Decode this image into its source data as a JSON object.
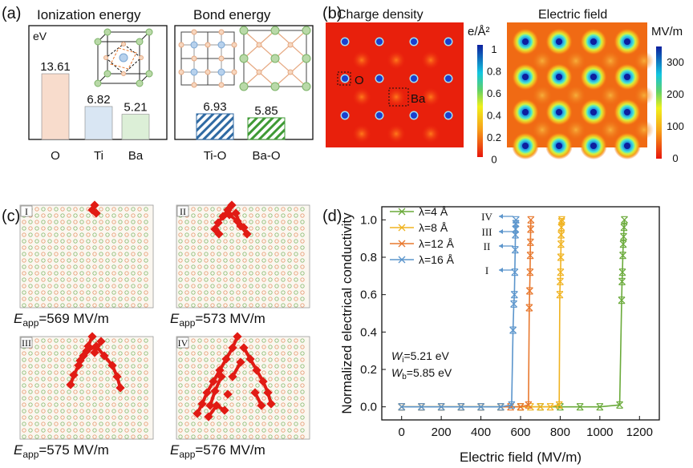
{
  "panel_a": {
    "label": "(a)",
    "ionization": {
      "title": "Ionization energy",
      "unit": "eV",
      "bars": [
        {
          "label": "O",
          "value": 13.61,
          "value_text": "13.61",
          "color": "#f8dccc"
        },
        {
          "label": "Ti",
          "value": 6.82,
          "value_text": "6.82",
          "color": "#d9e6f3"
        },
        {
          "label": "Ba",
          "value": 5.21,
          "value_text": "5.21",
          "color": "#dcefd7"
        }
      ]
    },
    "bond": {
      "title": "Bond energy",
      "bars": [
        {
          "label": "Ti-O",
          "value": 6.93,
          "value_text": "6.93",
          "color": "#2f6aa3"
        },
        {
          "label": "Ba-O",
          "value": 5.85,
          "value_text": "5.85",
          "color": "#3f9a35"
        }
      ]
    }
  },
  "panel_b": {
    "label": "(b)",
    "charge": {
      "title": "Charge density",
      "unit": "e/Å²",
      "ticks": [
        "1",
        "0.8",
        "0.6",
        "0.4",
        "0.2",
        "0"
      ],
      "site_labels": [
        "O",
        "Ba"
      ]
    },
    "field": {
      "title": "Electric field",
      "unit": "MV/m",
      "ticks": [
        "300",
        "200",
        "100",
        "0"
      ]
    }
  },
  "panel_c": {
    "label": "(c)",
    "panels": [
      {
        "roman": "I",
        "e_app": "569 MV/m"
      },
      {
        "roman": "II",
        "e_app": "573 MV/m"
      },
      {
        "roman": "III",
        "e_app": "575 MV/m"
      },
      {
        "roman": "IV",
        "e_app": "576 MV/m"
      }
    ],
    "e_symbol": "E",
    "e_sub": "app"
  },
  "panel_d": {
    "label": "(d)",
    "chart_data": {
      "type": "line",
      "xlabel": "Electric field (MV/m)",
      "ylabel": "Normalized electrical conductivity",
      "xlim": [
        -100,
        1300
      ],
      "ylim": [
        -0.07,
        1.07
      ],
      "xticks": [
        0,
        200,
        400,
        600,
        800,
        1000,
        1200
      ],
      "yticks": [
        0.0,
        0.2,
        0.4,
        0.6,
        0.8,
        1.0
      ],
      "legend_position": "top-left",
      "series": [
        {
          "name": "λ=4 Å",
          "color": "#6aaa3a",
          "x": [
            0,
            100,
            200,
            300,
            400,
            500,
            600,
            700,
            800,
            900,
            1000,
            1100,
            1110,
            1112,
            1114,
            1116,
            1118,
            1120,
            1122,
            1124
          ],
          "y": [
            0,
            0,
            0,
            0,
            0,
            0,
            0,
            0,
            0,
            0,
            0,
            0.01,
            0.57,
            0.67,
            0.72,
            0.81,
            0.87,
            0.91,
            0.96,
            1.0
          ]
        },
        {
          "name": "λ=8 Å",
          "color": "#f0b321",
          "x": [
            0,
            100,
            200,
            300,
            400,
            500,
            600,
            650,
            700,
            750,
            795,
            798,
            800,
            802,
            803,
            804,
            805,
            806,
            807,
            808
          ],
          "y": [
            0,
            0,
            0,
            0,
            0,
            0,
            0,
            0,
            0,
            0,
            0.01,
            0.6,
            0.67,
            0.72,
            0.8,
            0.87,
            0.92,
            0.96,
            0.99,
            1.0
          ]
        },
        {
          "name": "λ=12 Å",
          "color": "#e8782e",
          "x": [
            0,
            100,
            200,
            300,
            400,
            500,
            550,
            600,
            640,
            644,
            646,
            648,
            649,
            650,
            651,
            652
          ],
          "y": [
            0,
            0,
            0,
            0,
            0,
            0,
            0,
            0,
            0.01,
            0.53,
            0.62,
            0.72,
            0.81,
            0.88,
            0.95,
            1.0
          ]
        },
        {
          "name": "λ=16 Å",
          "color": "#5b95cc",
          "x": [
            0,
            100,
            200,
            300,
            400,
            500,
            555,
            562,
            566,
            569,
            571,
            573,
            574,
            575,
            576,
            577
          ],
          "y": [
            0,
            0,
            0,
            0,
            0,
            0,
            0.01,
            0.41,
            0.55,
            0.6,
            0.72,
            0.84,
            0.92,
            0.95,
            0.98,
            1.0
          ]
        }
      ],
      "markers": [
        {
          "roman": "IV",
          "y": 1.0
        },
        {
          "roman": "III",
          "y": 0.95
        },
        {
          "roman": "II",
          "y": 0.88
        },
        {
          "roman": "I",
          "y": 0.73
        }
      ],
      "annotation": {
        "wi_symbol": "W",
        "wi_sub": "i",
        "wi_value": "=5.21 eV",
        "wb_symbol": "W",
        "wb_sub": "b",
        "wb_value": "=5.85 eV"
      }
    }
  }
}
